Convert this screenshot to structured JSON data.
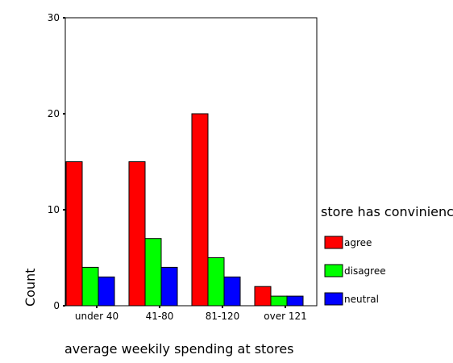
{
  "chart_data": {
    "type": "bar",
    "title": "",
    "xlabel": "average weekily spending at stores",
    "ylabel": "Count",
    "ylim": [
      0,
      30
    ],
    "yticks": [
      0,
      10,
      20,
      30
    ],
    "categories": [
      "under 40",
      "41-80",
      "81-120",
      "over 121"
    ],
    "legend_title": "store has convinienc",
    "legend_position": "right",
    "grid": false,
    "series": [
      {
        "name": "agree",
        "color": "#ff0000",
        "values": [
          15,
          15,
          20,
          2
        ]
      },
      {
        "name": "disagree",
        "color": "#00ff00",
        "values": [
          4,
          7,
          5,
          1
        ]
      },
      {
        "name": "neutral",
        "color": "#0000ff",
        "values": [
          3,
          4,
          3,
          1
        ]
      }
    ]
  }
}
